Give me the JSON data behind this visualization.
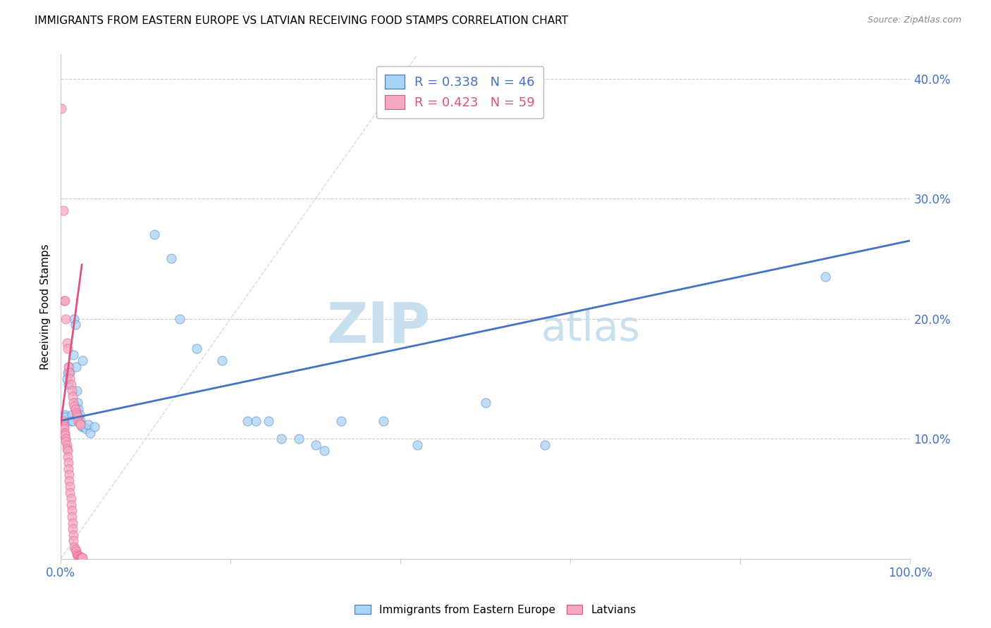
{
  "title": "IMMIGRANTS FROM EASTERN EUROPE VS LATVIAN RECEIVING FOOD STAMPS CORRELATION CHART",
  "source": "Source: ZipAtlas.com",
  "ylabel": "Receiving Food Stamps",
  "xlim": [
    0.0,
    1.0
  ],
  "ylim": [
    0.0,
    0.42
  ],
  "x_ticks": [
    0.0,
    0.2,
    0.4,
    0.6,
    0.8,
    1.0
  ],
  "x_tick_labels": [
    "0.0%",
    "",
    "",
    "",
    "",
    "100.0%"
  ],
  "y_ticks": [
    0.0,
    0.1,
    0.2,
    0.3,
    0.4
  ],
  "y_tick_labels": [
    "",
    "10.0%",
    "20.0%",
    "30.0%",
    "40.0%"
  ],
  "blue_R": 0.338,
  "blue_N": 46,
  "pink_R": 0.423,
  "pink_N": 59,
  "blue_color": "#a8d4f5",
  "pink_color": "#f5a8c0",
  "blue_line_color": "#4472c4",
  "pink_line_color": "#e05080",
  "blue_scatter": [
    [
      0.004,
      0.115
    ],
    [
      0.005,
      0.12
    ],
    [
      0.006,
      0.118
    ],
    [
      0.007,
      0.15
    ],
    [
      0.008,
      0.155
    ],
    [
      0.009,
      0.145
    ],
    [
      0.01,
      0.16
    ],
    [
      0.011,
      0.155
    ],
    [
      0.012,
      0.115
    ],
    [
      0.013,
      0.12
    ],
    [
      0.014,
      0.115
    ],
    [
      0.015,
      0.17
    ],
    [
      0.016,
      0.2
    ],
    [
      0.017,
      0.195
    ],
    [
      0.018,
      0.16
    ],
    [
      0.019,
      0.14
    ],
    [
      0.02,
      0.13
    ],
    [
      0.021,
      0.125
    ],
    [
      0.022,
      0.12
    ],
    [
      0.023,
      0.115
    ],
    [
      0.024,
      0.112
    ],
    [
      0.025,
      0.11
    ],
    [
      0.026,
      0.165
    ],
    [
      0.027,
      0.11
    ],
    [
      0.03,
      0.108
    ],
    [
      0.032,
      0.112
    ],
    [
      0.035,
      0.105
    ],
    [
      0.04,
      0.11
    ],
    [
      0.11,
      0.27
    ],
    [
      0.13,
      0.25
    ],
    [
      0.14,
      0.2
    ],
    [
      0.16,
      0.175
    ],
    [
      0.19,
      0.165
    ],
    [
      0.22,
      0.115
    ],
    [
      0.23,
      0.115
    ],
    [
      0.245,
      0.115
    ],
    [
      0.26,
      0.1
    ],
    [
      0.28,
      0.1
    ],
    [
      0.3,
      0.095
    ],
    [
      0.31,
      0.09
    ],
    [
      0.33,
      0.115
    ],
    [
      0.38,
      0.115
    ],
    [
      0.42,
      0.095
    ],
    [
      0.5,
      0.13
    ],
    [
      0.57,
      0.095
    ],
    [
      0.9,
      0.235
    ]
  ],
  "pink_scatter": [
    [
      0.001,
      0.375
    ],
    [
      0.003,
      0.29
    ],
    [
      0.004,
      0.215
    ],
    [
      0.005,
      0.215
    ],
    [
      0.006,
      0.2
    ],
    [
      0.007,
      0.18
    ],
    [
      0.008,
      0.175
    ],
    [
      0.009,
      0.16
    ],
    [
      0.01,
      0.155
    ],
    [
      0.011,
      0.15
    ],
    [
      0.012,
      0.145
    ],
    [
      0.013,
      0.14
    ],
    [
      0.014,
      0.135
    ],
    [
      0.015,
      0.13
    ],
    [
      0.016,
      0.127
    ],
    [
      0.017,
      0.125
    ],
    [
      0.018,
      0.122
    ],
    [
      0.019,
      0.12
    ],
    [
      0.02,
      0.118
    ],
    [
      0.021,
      0.115
    ],
    [
      0.022,
      0.113
    ],
    [
      0.023,
      0.112
    ],
    [
      0.003,
      0.115
    ],
    [
      0.003,
      0.112
    ],
    [
      0.004,
      0.11
    ],
    [
      0.004,
      0.108
    ],
    [
      0.005,
      0.105
    ],
    [
      0.005,
      0.103
    ],
    [
      0.006,
      0.1
    ],
    [
      0.006,
      0.098
    ],
    [
      0.007,
      0.095
    ],
    [
      0.007,
      0.092
    ],
    [
      0.008,
      0.09
    ],
    [
      0.008,
      0.085
    ],
    [
      0.009,
      0.08
    ],
    [
      0.009,
      0.075
    ],
    [
      0.01,
      0.07
    ],
    [
      0.01,
      0.065
    ],
    [
      0.011,
      0.06
    ],
    [
      0.011,
      0.055
    ],
    [
      0.012,
      0.05
    ],
    [
      0.012,
      0.045
    ],
    [
      0.013,
      0.04
    ],
    [
      0.013,
      0.035
    ],
    [
      0.014,
      0.03
    ],
    [
      0.014,
      0.025
    ],
    [
      0.015,
      0.02
    ],
    [
      0.015,
      0.015
    ],
    [
      0.016,
      0.01
    ],
    [
      0.017,
      0.008
    ],
    [
      0.018,
      0.006
    ],
    [
      0.019,
      0.004
    ],
    [
      0.02,
      0.003
    ],
    [
      0.021,
      0.002
    ],
    [
      0.022,
      0.002
    ],
    [
      0.023,
      0.001
    ],
    [
      0.024,
      0.001
    ],
    [
      0.025,
      0.001
    ],
    [
      0.026,
      0.001
    ]
  ],
  "background_color": "#ffffff",
  "grid_color": "#cccccc",
  "watermark_zip": "ZIP",
  "watermark_atlas": "atlas",
  "watermark_color_zip": "#c8dff0",
  "watermark_color_atlas": "#c8dff0",
  "legend_blue_label": "Immigrants from Eastern Europe",
  "legend_pink_label": "Latvians",
  "title_fontsize": 11,
  "tick_label_color": "#4472c4",
  "blue_trendline_x": [
    0.0,
    1.0
  ],
  "blue_trendline_y": [
    0.115,
    0.265
  ],
  "pink_trendline_x": [
    0.0,
    0.025
  ],
  "pink_trendline_y": [
    0.112,
    0.245
  ]
}
